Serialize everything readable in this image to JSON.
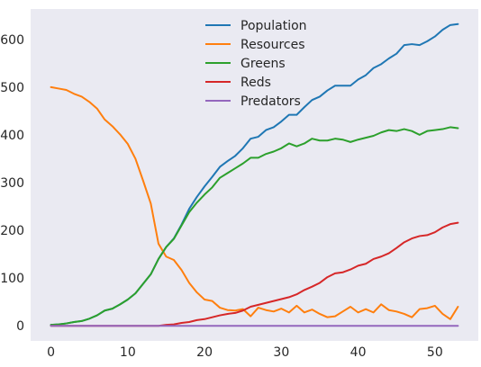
{
  "chart_data": {
    "type": "line",
    "title": "",
    "xlabel": "",
    "ylabel": "",
    "xlim": [
      -2.65,
      55.65
    ],
    "ylim": [
      -31.6,
      663.6
    ],
    "x_ticks": [
      0,
      10,
      20,
      30,
      40,
      50
    ],
    "y_ticks": [
      0,
      100,
      200,
      300,
      400,
      500,
      600
    ],
    "grid": false,
    "legend_position": "top-center",
    "x": [
      0,
      1,
      2,
      3,
      4,
      5,
      6,
      7,
      8,
      9,
      10,
      11,
      12,
      13,
      14,
      15,
      16,
      17,
      18,
      19,
      20,
      21,
      22,
      23,
      24,
      25,
      26,
      27,
      28,
      29,
      30,
      31,
      32,
      33,
      34,
      35,
      36,
      37,
      38,
      39,
      40,
      41,
      42,
      43,
      44,
      45,
      46,
      47,
      48,
      49,
      50,
      51,
      52,
      53
    ],
    "series": [
      {
        "name": "Population",
        "color": "#1f77b4",
        "values": [
          2,
          3,
          5,
          8,
          10,
          15,
          22,
          32,
          36,
          45,
          55,
          68,
          88,
          108,
          140,
          165,
          183,
          212,
          245,
          270,
          292,
          312,
          333,
          345,
          356,
          372,
          392,
          396,
          410,
          416,
          428,
          442,
          442,
          458,
          473,
          480,
          493,
          503,
          503,
          503,
          516,
          525,
          540,
          548,
          560,
          570,
          588,
          590,
          588,
          596,
          606,
          620,
          630,
          632
        ]
      },
      {
        "name": "Resources",
        "color": "#ff7f0e",
        "values": [
          500,
          497,
          494,
          486,
          480,
          469,
          455,
          432,
          418,
          401,
          381,
          350,
          304,
          256,
          172,
          145,
          138,
          117,
          90,
          70,
          55,
          52,
          38,
          33,
          32,
          35,
          20,
          38,
          33,
          30,
          36,
          28,
          42,
          28,
          34,
          25,
          18,
          20,
          30,
          40,
          28,
          35,
          28,
          45,
          33,
          30,
          25,
          18,
          35,
          37,
          42,
          25,
          14,
          40
        ]
      },
      {
        "name": "Greens",
        "color": "#2ca02c",
        "values": [
          2,
          3,
          5,
          8,
          10,
          15,
          22,
          32,
          36,
          45,
          55,
          68,
          88,
          108,
          140,
          165,
          182,
          210,
          238,
          258,
          275,
          290,
          310,
          320,
          330,
          340,
          352,
          352,
          360,
          365,
          372,
          382,
          376,
          382,
          392,
          388,
          388,
          392,
          390,
          385,
          390,
          394,
          398,
          405,
          410,
          408,
          412,
          408,
          400,
          408,
          410,
          412,
          416,
          414
        ]
      },
      {
        "name": "Reds",
        "color": "#d62728",
        "values": [
          0,
          0,
          0,
          0,
          0,
          0,
          0,
          0,
          0,
          0,
          0,
          0,
          0,
          0,
          0,
          2,
          3,
          6,
          8,
          12,
          14,
          18,
          22,
          25,
          27,
          32,
          40,
          44,
          48,
          52,
          56,
          60,
          66,
          75,
          82,
          90,
          102,
          110,
          112,
          118,
          126,
          130,
          140,
          145,
          152,
          163,
          175,
          183,
          188,
          190,
          196,
          206,
          213,
          216
        ]
      },
      {
        "name": "Predators",
        "color": "#9467bd",
        "values": [
          0,
          0,
          0,
          0,
          0,
          0,
          0,
          0,
          0,
          0,
          0,
          0,
          0,
          0,
          0,
          0,
          0,
          0,
          0,
          0,
          0,
          0,
          0,
          0,
          0,
          0,
          0,
          0,
          0,
          0,
          0,
          0,
          0,
          0,
          0,
          0,
          0,
          0,
          0,
          0,
          0,
          0,
          0,
          0,
          0,
          0,
          0,
          0,
          0,
          0,
          0,
          0,
          0,
          0
        ]
      }
    ]
  }
}
